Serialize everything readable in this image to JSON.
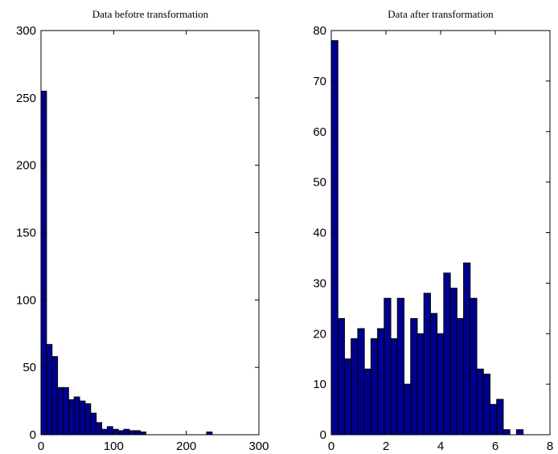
{
  "chart_data": [
    {
      "type": "bar",
      "title": "Data befotre transformation",
      "xlabel": "",
      "ylabel": "",
      "xlim": [
        0,
        300
      ],
      "ylim": [
        0,
        300
      ],
      "xticks": [
        0,
        100,
        200,
        300
      ],
      "yticks": [
        0,
        50,
        100,
        150,
        200,
        250,
        300
      ],
      "grid": false,
      "bin_width": 7.6,
      "bin_start": 0,
      "values": [
        255,
        67,
        58,
        35,
        35,
        26,
        28,
        25,
        23,
        16,
        9,
        4,
        6,
        4,
        3,
        4,
        3,
        3,
        2,
        0,
        0,
        0,
        0,
        0,
        0,
        0,
        0,
        0,
        0,
        0,
        2
      ]
    },
    {
      "type": "bar",
      "title": "Data after transformation",
      "xlabel": "",
      "ylabel": "",
      "xlim": [
        0,
        8
      ],
      "ylim": [
        0,
        80
      ],
      "xticks": [
        0,
        2,
        4,
        6,
        8
      ],
      "yticks": [
        0,
        10,
        20,
        30,
        40,
        50,
        60,
        70,
        80
      ],
      "grid": false,
      "bin_width": 0.242,
      "bin_start": 0,
      "values": [
        78,
        23,
        15,
        19,
        21,
        13,
        19,
        21,
        27,
        19,
        27,
        10,
        23,
        20,
        28,
        24,
        20,
        32,
        29,
        23,
        34,
        27,
        13,
        12,
        6,
        7,
        1,
        0,
        1,
        0
      ]
    }
  ]
}
